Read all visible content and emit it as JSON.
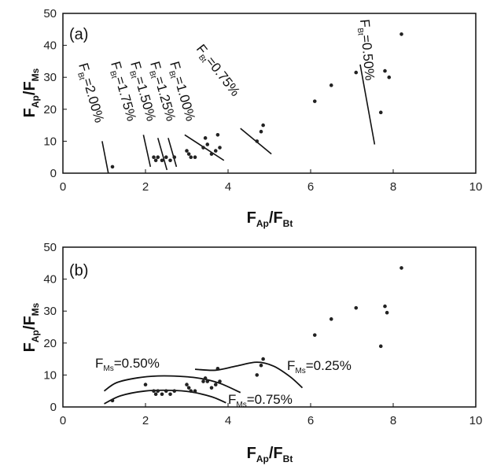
{
  "chart_data": [
    {
      "type": "scatter",
      "panel_label": "(a)",
      "xlabel": {
        "main": "F",
        "sub1": "Ap",
        "slash": "/F",
        "sub2": "Bt"
      },
      "ylabel": {
        "main": "F",
        "sub1": "Ap",
        "slash": "/F",
        "sub2": "Ms"
      },
      "xlim": [
        0,
        10
      ],
      "ylim": [
        0,
        50
      ],
      "xticks": [
        "0",
        "2",
        "4",
        "6",
        "8",
        "10"
      ],
      "yticks": [
        "0",
        "10",
        "20",
        "30",
        "40",
        "50"
      ],
      "grid": false,
      "points": [
        {
          "x": 1.2,
          "y": 2
        },
        {
          "x": 2.2,
          "y": 5
        },
        {
          "x": 2.25,
          "y": 4
        },
        {
          "x": 2.3,
          "y": 5
        },
        {
          "x": 2.4,
          "y": 4
        },
        {
          "x": 2.5,
          "y": 5
        },
        {
          "x": 2.6,
          "y": 4
        },
        {
          "x": 2.7,
          "y": 5
        },
        {
          "x": 3.0,
          "y": 7
        },
        {
          "x": 3.05,
          "y": 6
        },
        {
          "x": 3.1,
          "y": 5
        },
        {
          "x": 3.2,
          "y": 5
        },
        {
          "x": 3.4,
          "y": 8
        },
        {
          "x": 3.45,
          "y": 11
        },
        {
          "x": 3.5,
          "y": 9
        },
        {
          "x": 3.6,
          "y": 6
        },
        {
          "x": 3.7,
          "y": 7
        },
        {
          "x": 3.75,
          "y": 12
        },
        {
          "x": 3.8,
          "y": 8
        },
        {
          "x": 4.7,
          "y": 10
        },
        {
          "x": 4.8,
          "y": 13
        },
        {
          "x": 4.85,
          "y": 15
        },
        {
          "x": 6.1,
          "y": 22.5
        },
        {
          "x": 6.5,
          "y": 27.5
        },
        {
          "x": 7.1,
          "y": 31.5
        },
        {
          "x": 7.7,
          "y": 19
        },
        {
          "x": 7.8,
          "y": 32
        },
        {
          "x": 7.9,
          "y": 30
        },
        {
          "x": 8.2,
          "y": 43.5
        }
      ],
      "lines": [
        {
          "label": "2.00%",
          "x": [
            0.95,
            1.1
          ],
          "y": [
            10,
            0
          ]
        },
        {
          "label": "1.75%",
          "x": [
            1.95,
            2.12
          ],
          "y": [
            12,
            2
          ]
        },
        {
          "label": "1.50%",
          "x": [
            2.3,
            2.52
          ],
          "y": [
            11,
            1
          ]
        },
        {
          "label": "1.25%",
          "x": [
            2.55,
            2.75
          ],
          "y": [
            11,
            2
          ]
        },
        {
          "label": "1.00%",
          "x": [
            2.95,
            3.9
          ],
          "y": [
            12,
            4
          ]
        },
        {
          "label": "0.75%",
          "x": [
            4.3,
            5.05
          ],
          "y": [
            14,
            6
          ]
        },
        {
          "label": "0.50%",
          "x": [
            7.2,
            7.55
          ],
          "y": [
            34,
            9
          ]
        }
      ],
      "line_label_prefix": {
        "main": "F",
        "sub": "Bt",
        "eq": "="
      }
    },
    {
      "type": "scatter",
      "panel_label": "(b)",
      "xlabel": {
        "main": "F",
        "sub1": "Ap",
        "slash": "/F",
        "sub2": "Bt"
      },
      "ylabel": {
        "main": "F",
        "sub1": "Ap",
        "slash": "/F",
        "sub2": "Ms"
      },
      "xlim": [
        0,
        10
      ],
      "ylim": [
        0,
        50
      ],
      "xticks": [
        "0",
        "2",
        "4",
        "6",
        "8",
        "10"
      ],
      "yticks": [
        "0",
        "10",
        "20",
        "30",
        "40",
        "50"
      ],
      "grid": false,
      "points": [
        {
          "x": 1.2,
          "y": 2
        },
        {
          "x": 2.0,
          "y": 7
        },
        {
          "x": 2.2,
          "y": 5
        },
        {
          "x": 2.25,
          "y": 4
        },
        {
          "x": 2.3,
          "y": 5
        },
        {
          "x": 2.4,
          "y": 4
        },
        {
          "x": 2.5,
          "y": 5
        },
        {
          "x": 2.6,
          "y": 4
        },
        {
          "x": 2.7,
          "y": 5
        },
        {
          "x": 3.0,
          "y": 7
        },
        {
          "x": 3.05,
          "y": 6
        },
        {
          "x": 3.1,
          "y": 5
        },
        {
          "x": 3.2,
          "y": 5
        },
        {
          "x": 3.4,
          "y": 8
        },
        {
          "x": 3.45,
          "y": 9
        },
        {
          "x": 3.5,
          "y": 8
        },
        {
          "x": 3.6,
          "y": 6
        },
        {
          "x": 3.7,
          "y": 7
        },
        {
          "x": 3.75,
          "y": 12
        },
        {
          "x": 3.8,
          "y": 8
        },
        {
          "x": 4.7,
          "y": 10
        },
        {
          "x": 4.8,
          "y": 13
        },
        {
          "x": 4.85,
          "y": 15
        },
        {
          "x": 6.1,
          "y": 22.5
        },
        {
          "x": 6.5,
          "y": 27.5
        },
        {
          "x": 7.1,
          "y": 31
        },
        {
          "x": 7.7,
          "y": 19
        },
        {
          "x": 7.8,
          "y": 31.5
        },
        {
          "x": 7.85,
          "y": 29.5
        },
        {
          "x": 8.2,
          "y": 43.5
        }
      ],
      "curves": [
        {
          "label": "0.50%",
          "x": [
            1.0,
            1.3,
            1.8,
            2.3,
            2.8,
            3.3,
            3.8,
            4.3
          ],
          "y": [
            5,
            7.6,
            9.1,
            9.7,
            9.6,
            9.0,
            7.4,
            4.5
          ]
        },
        {
          "label": "0.75%",
          "x": [
            1.0,
            1.4,
            2.0,
            2.6,
            3.1,
            3.6,
            3.95
          ],
          "y": [
            1,
            3.5,
            5,
            5.2,
            4.7,
            3.2,
            1.3
          ]
        },
        {
          "label": "0.25%",
          "x": [
            3.2,
            3.7,
            4.2,
            4.7,
            5.1,
            5.5,
            5.8
          ],
          "y": [
            11.8,
            11.5,
            12.8,
            14.0,
            12.8,
            9.5,
            6.0
          ]
        }
      ],
      "curve_label_prefix": {
        "main": "F",
        "sub": "Ms",
        "eq": "="
      }
    }
  ]
}
